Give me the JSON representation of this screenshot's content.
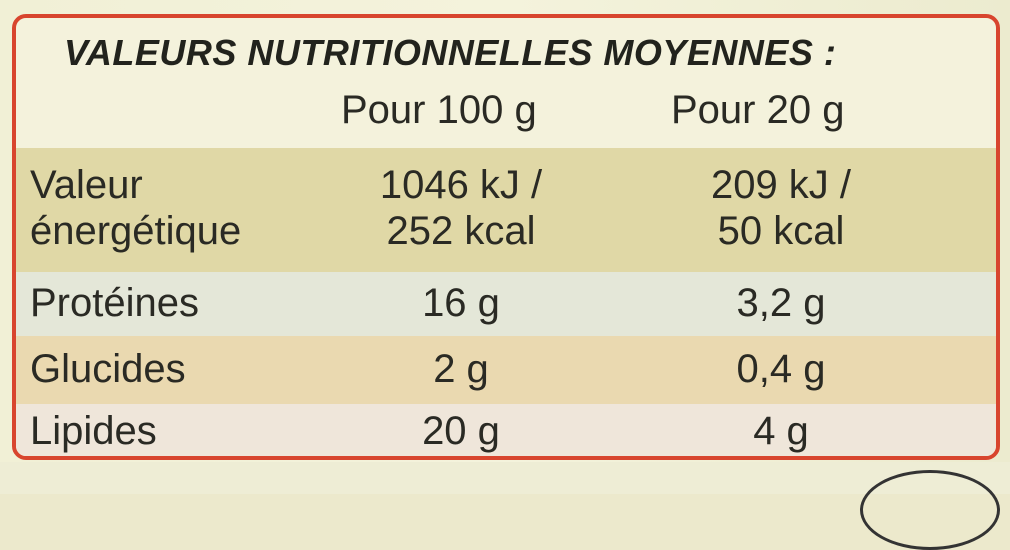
{
  "title": "VALEURS NUTRITIONNELLES MOYENNES :",
  "columns": {
    "per100": "Pour 100 g",
    "per20": "Pour 20 g"
  },
  "rows": [
    {
      "name_line1": "Valeur",
      "name_line2": "énergétique",
      "v100_line1": "1046 kJ /",
      "v100_line2": "252 kcal",
      "v20_line1": "209 kJ /",
      "v20_line2": "50 kcal"
    },
    {
      "name": "Protéines",
      "v100": "16 g",
      "v20": "3,2 g"
    },
    {
      "name": "Glucides",
      "v100": "2 g",
      "v20": "0,4 g"
    },
    {
      "name": "Lipides",
      "v100": "20 g",
      "v20": "4 g"
    }
  ],
  "colors": {
    "border": "#d8452e",
    "energy_row": "#e0d8a6",
    "protein_row": "#e4e7d8",
    "glucid_row": "#ead9b0",
    "lipid_row": "#efe6da"
  }
}
